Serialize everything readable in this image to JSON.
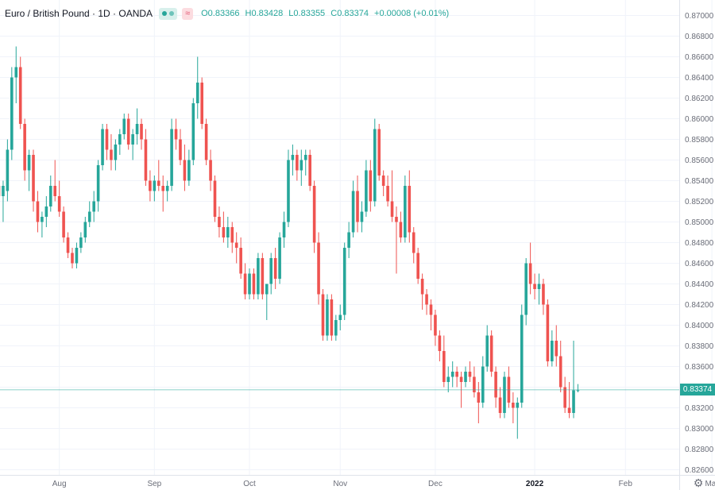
{
  "header": {
    "title": "Euro / British Pound · 1D · OANDA",
    "approx_symbol": "≈",
    "open": "O0.83366",
    "high": "H0.83428",
    "low": "L0.83355",
    "close": "C0.83374",
    "change": "+0.00008 (+0.01%)"
  },
  "last_price_label": "0.83374",
  "colors": {
    "up": "#26a69a",
    "down": "#ef5350",
    "grid": "#f0f3fa",
    "text": "#131722",
    "axis_text": "#6a6d78"
  },
  "chart_data": {
    "type": "candlestick",
    "title": "Euro / British Pound · 1D · OANDA",
    "ylim": [
      0.8255,
      0.8715
    ],
    "y_ticks": [
      "0.82600",
      "0.82800",
      "0.83000",
      "0.83200",
      "0.83400",
      "0.83600",
      "0.83800",
      "0.84000",
      "0.84200",
      "0.84400",
      "0.84600",
      "0.84800",
      "0.85000",
      "0.85200",
      "0.85400",
      "0.85600",
      "0.85800",
      "0.86000",
      "0.86200",
      "0.86400",
      "0.86600",
      "0.86800",
      "0.87000"
    ],
    "x_ticks": [
      {
        "label": "Aug",
        "index": 14,
        "bold": false
      },
      {
        "label": "Sep",
        "index": 36,
        "bold": false
      },
      {
        "label": "Oct",
        "index": 58,
        "bold": false
      },
      {
        "label": "Nov",
        "index": 79,
        "bold": false
      },
      {
        "label": "Dec",
        "index": 101,
        "bold": false
      },
      {
        "label": "2022",
        "index": 124,
        "bold": true
      },
      {
        "label": "Feb",
        "index": 145,
        "bold": false
      },
      {
        "label": "Mar",
        "index": 165,
        "bold": false
      }
    ],
    "last_price": 0.83374,
    "ohlc": [
      [
        0.8535,
        0.856,
        0.851,
        0.8525
      ],
      [
        0.8525,
        0.854,
        0.85,
        0.8535
      ],
      [
        0.853,
        0.858,
        0.852,
        0.857
      ],
      [
        0.857,
        0.865,
        0.856,
        0.864
      ],
      [
        0.864,
        0.867,
        0.8615,
        0.865
      ],
      [
        0.865,
        0.866,
        0.859,
        0.8595
      ],
      [
        0.8595,
        0.86,
        0.854,
        0.855
      ],
      [
        0.855,
        0.857,
        0.853,
        0.8565
      ],
      [
        0.8565,
        0.857,
        0.851,
        0.852
      ],
      [
        0.852,
        0.853,
        0.849,
        0.85
      ],
      [
        0.85,
        0.851,
        0.8485,
        0.8505
      ],
      [
        0.8505,
        0.8525,
        0.8495,
        0.8515
      ],
      [
        0.8515,
        0.8545,
        0.851,
        0.8535
      ],
      [
        0.8535,
        0.856,
        0.852,
        0.8525
      ],
      [
        0.8525,
        0.854,
        0.8505,
        0.851
      ],
      [
        0.851,
        0.8515,
        0.848,
        0.8485
      ],
      [
        0.8485,
        0.849,
        0.8465,
        0.847
      ],
      [
        0.847,
        0.8475,
        0.8455,
        0.846
      ],
      [
        0.846,
        0.848,
        0.8455,
        0.8475
      ],
      [
        0.8475,
        0.849,
        0.847,
        0.8485
      ],
      [
        0.8485,
        0.8505,
        0.848,
        0.85
      ],
      [
        0.85,
        0.852,
        0.8495,
        0.851
      ],
      [
        0.851,
        0.853,
        0.85,
        0.852
      ],
      [
        0.852,
        0.856,
        0.851,
        0.8555
      ],
      [
        0.8555,
        0.8595,
        0.855,
        0.859
      ],
      [
        0.859,
        0.8595,
        0.856,
        0.857
      ],
      [
        0.857,
        0.8585,
        0.855,
        0.856
      ],
      [
        0.856,
        0.858,
        0.855,
        0.8575
      ],
      [
        0.8575,
        0.859,
        0.8565,
        0.8585
      ],
      [
        0.8585,
        0.8605,
        0.858,
        0.86
      ],
      [
        0.86,
        0.8605,
        0.857,
        0.8575
      ],
      [
        0.8575,
        0.859,
        0.856,
        0.8585
      ],
      [
        0.8585,
        0.861,
        0.8575,
        0.8595
      ],
      [
        0.8595,
        0.86,
        0.857,
        0.858
      ],
      [
        0.858,
        0.859,
        0.8535,
        0.854
      ],
      [
        0.854,
        0.855,
        0.852,
        0.853
      ],
      [
        0.853,
        0.8545,
        0.852,
        0.854
      ],
      [
        0.854,
        0.856,
        0.853,
        0.8535
      ],
      [
        0.8535,
        0.8545,
        0.851,
        0.853
      ],
      [
        0.853,
        0.854,
        0.852,
        0.8535
      ],
      [
        0.8535,
        0.86,
        0.853,
        0.859
      ],
      [
        0.859,
        0.86,
        0.857,
        0.858
      ],
      [
        0.858,
        0.859,
        0.8555,
        0.856
      ],
      [
        0.856,
        0.8575,
        0.853,
        0.854
      ],
      [
        0.854,
        0.857,
        0.8535,
        0.856
      ],
      [
        0.856,
        0.862,
        0.8555,
        0.8615
      ],
      [
        0.8615,
        0.866,
        0.86,
        0.8635
      ],
      [
        0.8635,
        0.864,
        0.859,
        0.8595
      ],
      [
        0.8595,
        0.86,
        0.8555,
        0.856
      ],
      [
        0.856,
        0.857,
        0.853,
        0.854
      ],
      [
        0.854,
        0.8545,
        0.85,
        0.8505
      ],
      [
        0.8505,
        0.8515,
        0.8485,
        0.8495
      ],
      [
        0.8495,
        0.851,
        0.848,
        0.8485
      ],
      [
        0.8485,
        0.8505,
        0.8475,
        0.8495
      ],
      [
        0.8495,
        0.85,
        0.847,
        0.848
      ],
      [
        0.848,
        0.849,
        0.846,
        0.8475
      ],
      [
        0.8475,
        0.8485,
        0.8445,
        0.845
      ],
      [
        0.845,
        0.846,
        0.8425,
        0.843
      ],
      [
        0.843,
        0.8455,
        0.8425,
        0.845
      ],
      [
        0.845,
        0.8455,
        0.8425,
        0.843
      ],
      [
        0.843,
        0.847,
        0.8425,
        0.8465
      ],
      [
        0.8465,
        0.847,
        0.8425,
        0.843
      ],
      [
        0.843,
        0.844,
        0.8405,
        0.844
      ],
      [
        0.844,
        0.847,
        0.843,
        0.8465
      ],
      [
        0.8465,
        0.8475,
        0.8435,
        0.8445
      ],
      [
        0.8445,
        0.849,
        0.844,
        0.8485
      ],
      [
        0.8485,
        0.851,
        0.8475,
        0.85
      ],
      [
        0.85,
        0.857,
        0.8495,
        0.856
      ],
      [
        0.856,
        0.8575,
        0.8545,
        0.8565
      ],
      [
        0.8565,
        0.857,
        0.854,
        0.855
      ],
      [
        0.855,
        0.857,
        0.8535,
        0.856
      ],
      [
        0.856,
        0.857,
        0.8545,
        0.8565
      ],
      [
        0.8565,
        0.857,
        0.853,
        0.8535
      ],
      [
        0.8535,
        0.854,
        0.847,
        0.848
      ],
      [
        0.848,
        0.849,
        0.842,
        0.843
      ],
      [
        0.843,
        0.8435,
        0.8385,
        0.839
      ],
      [
        0.839,
        0.843,
        0.8385,
        0.8425
      ],
      [
        0.8425,
        0.843,
        0.8385,
        0.839
      ],
      [
        0.839,
        0.841,
        0.8385,
        0.8405
      ],
      [
        0.8405,
        0.842,
        0.8395,
        0.841
      ],
      [
        0.841,
        0.848,
        0.8405,
        0.8475
      ],
      [
        0.8475,
        0.85,
        0.8465,
        0.849
      ],
      [
        0.849,
        0.854,
        0.8485,
        0.853
      ],
      [
        0.853,
        0.8545,
        0.849,
        0.85
      ],
      [
        0.85,
        0.852,
        0.849,
        0.851
      ],
      [
        0.851,
        0.856,
        0.8505,
        0.855
      ],
      [
        0.855,
        0.856,
        0.851,
        0.852
      ],
      [
        0.852,
        0.86,
        0.8515,
        0.859
      ],
      [
        0.859,
        0.8595,
        0.854,
        0.8545
      ],
      [
        0.8545,
        0.855,
        0.8525,
        0.8535
      ],
      [
        0.8535,
        0.8545,
        0.8515,
        0.852
      ],
      [
        0.852,
        0.855,
        0.85,
        0.8505
      ],
      [
        0.8505,
        0.8515,
        0.845,
        0.85
      ],
      [
        0.85,
        0.851,
        0.848,
        0.8485
      ],
      [
        0.8485,
        0.8545,
        0.848,
        0.8535
      ],
      [
        0.8535,
        0.855,
        0.848,
        0.849
      ],
      [
        0.849,
        0.8495,
        0.846,
        0.847
      ],
      [
        0.847,
        0.8475,
        0.844,
        0.8445
      ],
      [
        0.8445,
        0.845,
        0.8415,
        0.843
      ],
      [
        0.843,
        0.8435,
        0.841,
        0.842
      ],
      [
        0.842,
        0.8425,
        0.8395,
        0.841
      ],
      [
        0.841,
        0.8415,
        0.838,
        0.839
      ],
      [
        0.839,
        0.8395,
        0.8365,
        0.8375
      ],
      [
        0.8375,
        0.839,
        0.834,
        0.8345
      ],
      [
        0.8345,
        0.836,
        0.8335,
        0.835
      ],
      [
        0.835,
        0.8365,
        0.834,
        0.8355
      ],
      [
        0.8355,
        0.836,
        0.834,
        0.835
      ],
      [
        0.835,
        0.8355,
        0.832,
        0.8345
      ],
      [
        0.8345,
        0.836,
        0.834,
        0.8355
      ],
      [
        0.8355,
        0.8365,
        0.8345,
        0.835
      ],
      [
        0.835,
        0.836,
        0.833,
        0.8335
      ],
      [
        0.8335,
        0.8345,
        0.8305,
        0.8325
      ],
      [
        0.8325,
        0.837,
        0.832,
        0.836
      ],
      [
        0.836,
        0.84,
        0.8355,
        0.839
      ],
      [
        0.839,
        0.8395,
        0.835,
        0.8355
      ],
      [
        0.8355,
        0.836,
        0.832,
        0.833
      ],
      [
        0.833,
        0.834,
        0.831,
        0.8315
      ],
      [
        0.8315,
        0.8355,
        0.831,
        0.835
      ],
      [
        0.835,
        0.836,
        0.832,
        0.8325
      ],
      [
        0.8325,
        0.8335,
        0.8305,
        0.832
      ],
      [
        0.832,
        0.833,
        0.829,
        0.8325
      ],
      [
        0.8325,
        0.842,
        0.832,
        0.841
      ],
      [
        0.841,
        0.8465,
        0.84,
        0.846
      ],
      [
        0.846,
        0.848,
        0.843,
        0.844
      ],
      [
        0.844,
        0.845,
        0.8425,
        0.8435
      ],
      [
        0.8435,
        0.845,
        0.842,
        0.844
      ],
      [
        0.844,
        0.8445,
        0.841,
        0.842
      ],
      [
        0.842,
        0.8425,
        0.836,
        0.8365
      ],
      [
        0.8365,
        0.8395,
        0.836,
        0.8385
      ],
      [
        0.8385,
        0.84,
        0.836,
        0.837
      ],
      [
        0.837,
        0.8385,
        0.8335,
        0.834
      ],
      [
        0.834,
        0.835,
        0.8315,
        0.832
      ],
      [
        0.832,
        0.8345,
        0.831,
        0.8315
      ],
      [
        0.8315,
        0.8385,
        0.831,
        0.8337
      ],
      [
        0.8337,
        0.8343,
        0.8335,
        0.8337
      ]
    ]
  }
}
